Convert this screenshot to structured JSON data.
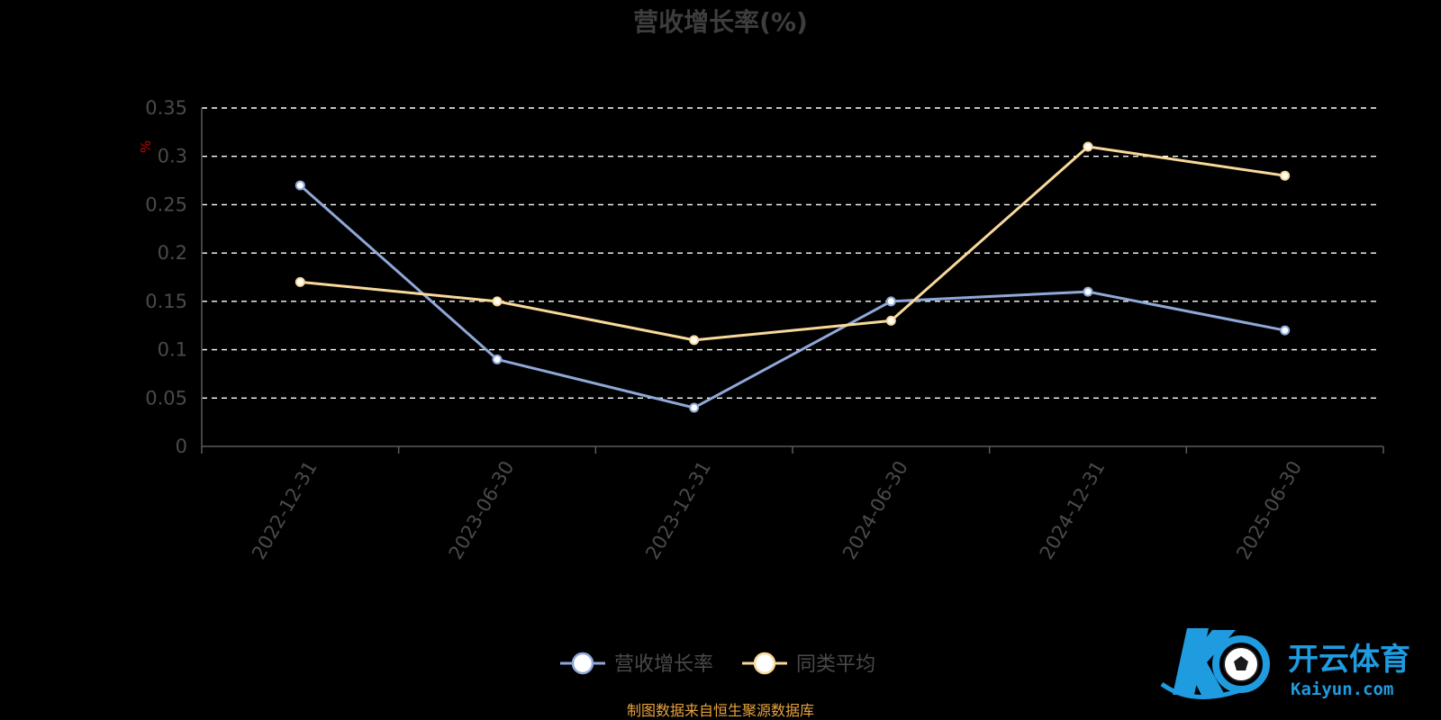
{
  "chart_data": {
    "type": "line",
    "title": "营收增长率(%)",
    "unit_label": "%",
    "categories": [
      "2022-12-31",
      "2023-06-30",
      "2023-12-31",
      "2024-06-30",
      "2024-12-31",
      "2025-06-30"
    ],
    "series": [
      {
        "name": "营收增长率",
        "values": [
          0.27,
          0.09,
          0.04,
          0.15,
          0.16,
          0.12
        ],
        "color": "#8fa8d8"
      },
      {
        "name": "同类平均",
        "values": [
          0.17,
          0.15,
          0.11,
          0.13,
          0.31,
          0.28
        ],
        "color": "#f9d99a"
      }
    ],
    "y_ticks": [
      "0",
      "0.05",
      "0.1",
      "0.15",
      "0.2",
      "0.25",
      "0.3",
      "0.35"
    ],
    "ylim": [
      0,
      0.35
    ],
    "grid": true,
    "legend_position": "bottom-center"
  },
  "source_note": "制图数据来自恒生聚源数据库",
  "watermark": {
    "cn_text": "开云体育",
    "en_text": "Kaiyun.com",
    "color": "#1f9be0"
  }
}
